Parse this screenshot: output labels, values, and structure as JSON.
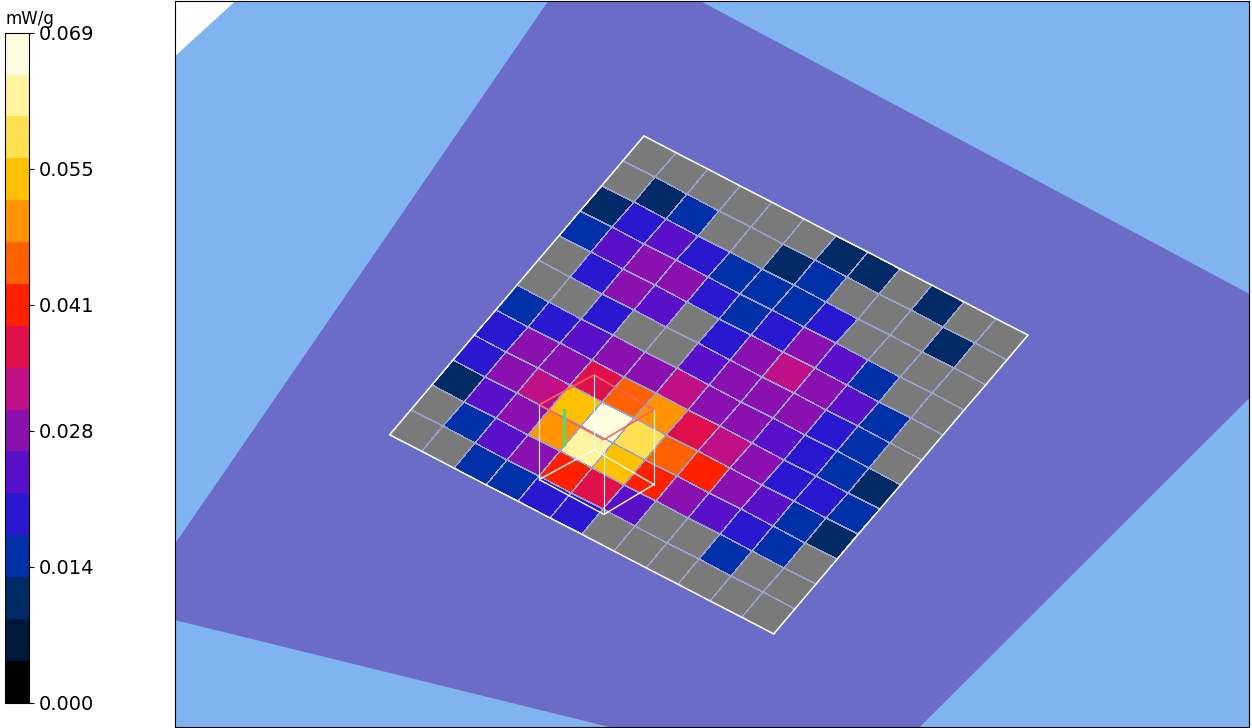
{
  "chart_data": {
    "type": "heatmap",
    "cells": [
      [
        null,
        null,
        0.012,
        0.018,
        0.02,
        0.015,
        null,
        null,
        0.014,
        0.01,
        null,
        null
      ],
      [
        null,
        0.016,
        0.024,
        0.03,
        0.026,
        0.02,
        null,
        0.018,
        0.022,
        0.02,
        0.012,
        null
      ],
      [
        0.014,
        0.022,
        0.03,
        0.034,
        0.03,
        0.024,
        0.02,
        0.026,
        0.03,
        0.024,
        0.016,
        null
      ],
      [
        0.016,
        0.03,
        0.048,
        0.052,
        0.038,
        0.026,
        null,
        0.022,
        0.028,
        0.02,
        null,
        null
      ],
      [
        0.02,
        0.04,
        0.062,
        0.069,
        0.046,
        0.028,
        null,
        null,
        0.02,
        0.016,
        null,
        null
      ],
      [
        0.018,
        0.036,
        0.056,
        0.06,
        0.05,
        0.032,
        0.024,
        0.018,
        0.016,
        0.014,
        0.012,
        null
      ],
      [
        null,
        0.024,
        0.04,
        0.046,
        0.038,
        0.03,
        0.026,
        0.028,
        0.02,
        0.016,
        0.014,
        0.012
      ],
      [
        null,
        null,
        0.03,
        0.042,
        0.032,
        0.028,
        0.03,
        0.032,
        0.026,
        0.018,
        null,
        0.012
      ],
      [
        null,
        null,
        0.022,
        0.03,
        0.028,
        0.024,
        0.026,
        0.028,
        0.022,
        null,
        null,
        null
      ],
      [
        null,
        0.014,
        0.018,
        0.022,
        0.02,
        0.018,
        0.02,
        0.022,
        0.016,
        null,
        null,
        0.01
      ],
      [
        null,
        null,
        0.014,
        0.016,
        0.018,
        0.016,
        0.014,
        0.016,
        null,
        null,
        0.012,
        null
      ],
      [
        null,
        null,
        null,
        0.012,
        0.014,
        0.012,
        null,
        null,
        null,
        null,
        null,
        null
      ]
    ],
    "colorbar": {
      "label": "mW/g",
      "lim": [
        0,
        0.069
      ],
      "ticks": [
        {
          "value": 0,
          "label": "0.000"
        },
        0.014,
        0.028,
        0.041,
        0.055,
        0.069
      ]
    }
  }
}
